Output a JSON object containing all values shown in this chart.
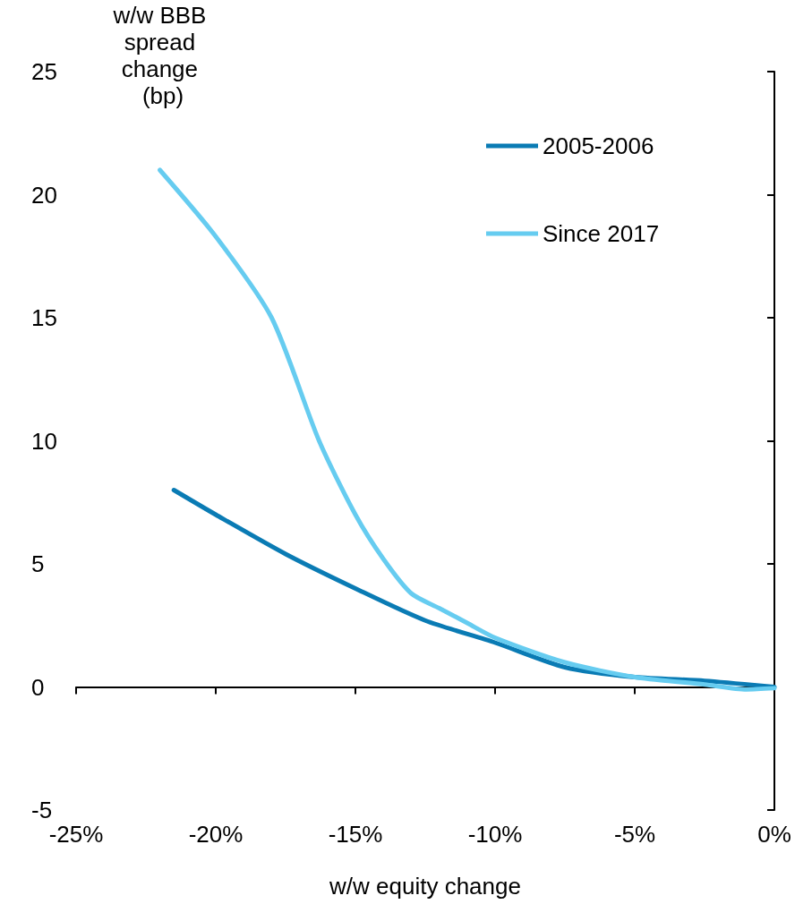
{
  "chart_data": {
    "type": "line",
    "xlabel": "w/w equity change",
    "ylabel": "w/w BBB spread change (bp)",
    "xlim": [
      -25,
      0
    ],
    "xticks": [
      {
        "value": -25,
        "label": "-25%"
      },
      {
        "value": -20,
        "label": "-20%"
      },
      {
        "value": -15,
        "label": "-15%"
      },
      {
        "value": -10,
        "label": "-10%"
      },
      {
        "value": -5,
        "label": "-5%"
      },
      {
        "value": 0,
        "label": "0%"
      }
    ],
    "ylim": [
      -5,
      25
    ],
    "yticks": [
      -5,
      0,
      5,
      10,
      15,
      20,
      25
    ],
    "legend": "top right",
    "marker": "none",
    "line_style": "solid",
    "series": [
      {
        "name": "2005-2006",
        "color": "#0a7bb4",
        "x": [
          -21.5,
          -20,
          -17.5,
          -15,
          -12.5,
          -10,
          -7.5,
          -5,
          -2.5,
          0
        ],
        "values": [
          8.0,
          7.0,
          5.4,
          4.0,
          2.7,
          1.8,
          0.8,
          0.4,
          0.25,
          0
        ]
      },
      {
        "name": "Since 2017",
        "color": "#66ccf0",
        "x": [
          -22,
          -20,
          -18,
          -16.3,
          -15,
          -14,
          -13,
          -12,
          -11,
          -10,
          -7.5,
          -5,
          -2.5,
          -1,
          0
        ],
        "values": [
          21.0,
          18.3,
          15.0,
          10.0,
          7.0,
          5.2,
          3.8,
          3.2,
          2.6,
          2.0,
          1.0,
          0.4,
          0.1,
          -0.1,
          -0.05
        ]
      }
    ]
  }
}
